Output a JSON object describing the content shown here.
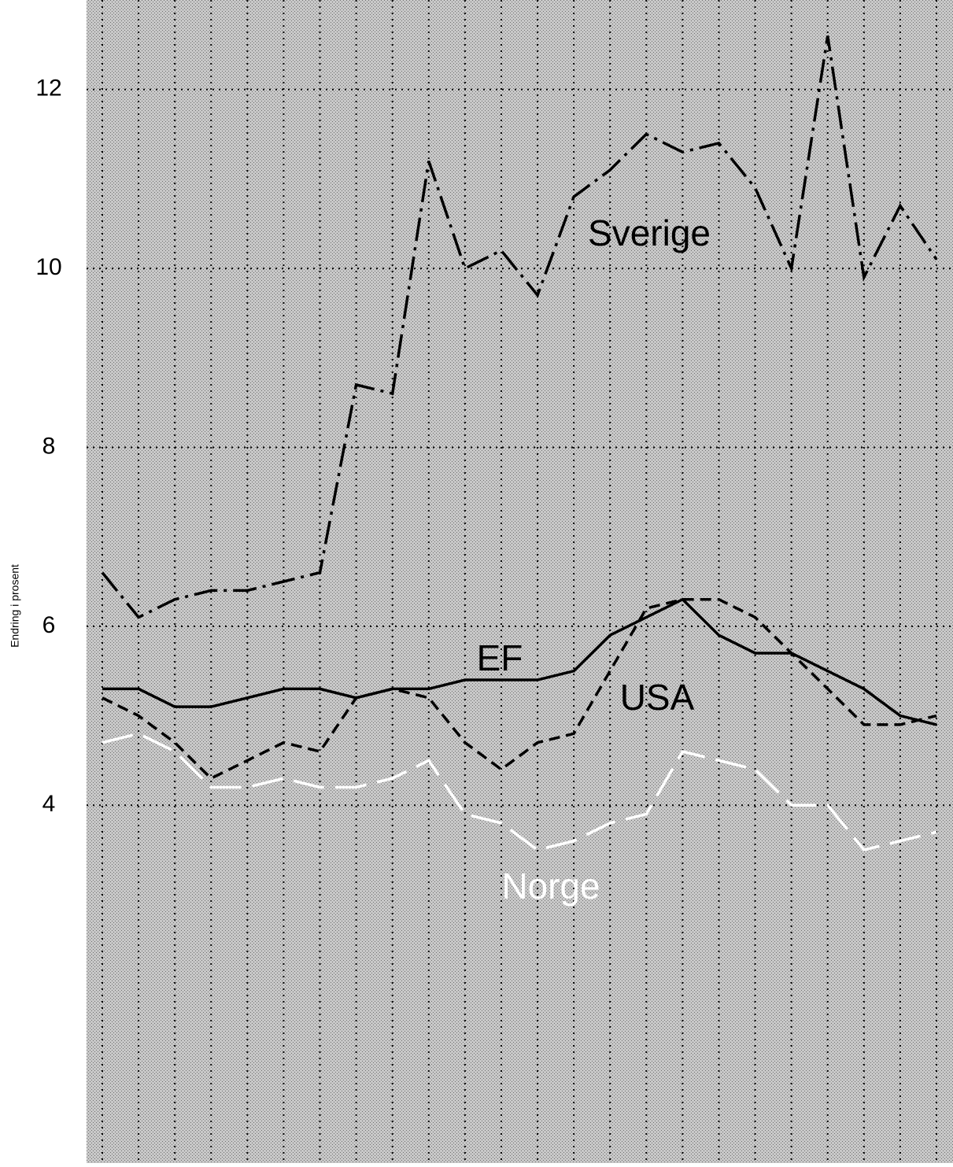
{
  "chart_data": {
    "type": "line",
    "y_label": "Endring i prosent",
    "categories": [
      null,
      null,
      null,
      null,
      null,
      null,
      null,
      null,
      null,
      null,
      null,
      null,
      null,
      null,
      null,
      null,
      null,
      null,
      null,
      null,
      null,
      null,
      null,
      null
    ],
    "series": [
      {
        "name": "Sverige",
        "color": "#000000",
        "dash": "dashdot",
        "values": [
          6.6,
          6.1,
          6.3,
          6.4,
          6.4,
          6.5,
          6.6,
          8.7,
          8.6,
          11.2,
          10.0,
          10.2,
          9.7,
          10.8,
          11.1,
          11.5,
          11.3,
          11.4,
          10.9,
          10.0,
          12.6,
          9.9,
          10.7,
          10.1
        ]
      },
      {
        "name": "EF",
        "color": "#000000",
        "dash": "solid",
        "values": [
          5.3,
          5.3,
          5.1,
          5.1,
          5.2,
          5.3,
          5.3,
          5.2,
          5.3,
          5.3,
          5.4,
          5.4,
          5.4,
          5.5,
          5.9,
          6.1,
          6.3,
          5.9,
          5.7,
          5.7,
          5.5,
          5.3,
          5.0,
          4.9
        ]
      },
      {
        "name": "USA",
        "color": "#000000",
        "dash": "dash",
        "values": [
          5.2,
          5.0,
          4.7,
          4.3,
          4.5,
          4.7,
          4.6,
          5.2,
          5.3,
          5.2,
          4.7,
          4.4,
          4.7,
          4.8,
          5.5,
          6.2,
          6.3,
          6.3,
          6.1,
          5.7,
          5.3,
          4.9,
          4.9,
          5.0
        ]
      },
      {
        "name": "Norge",
        "color": "#ffffff",
        "dash": "longdash",
        "values": [
          4.7,
          4.8,
          4.6,
          4.2,
          4.2,
          4.3,
          4.2,
          4.2,
          4.3,
          4.5,
          3.9,
          3.8,
          3.5,
          3.6,
          3.8,
          3.9,
          4.6,
          4.5,
          4.4,
          4.0,
          4.0,
          3.5,
          3.6,
          3.7
        ]
      }
    ],
    "ylim": [
      0,
      13
    ],
    "yticks": [
      4,
      6,
      8,
      10,
      12
    ],
    "grid": true
  }
}
